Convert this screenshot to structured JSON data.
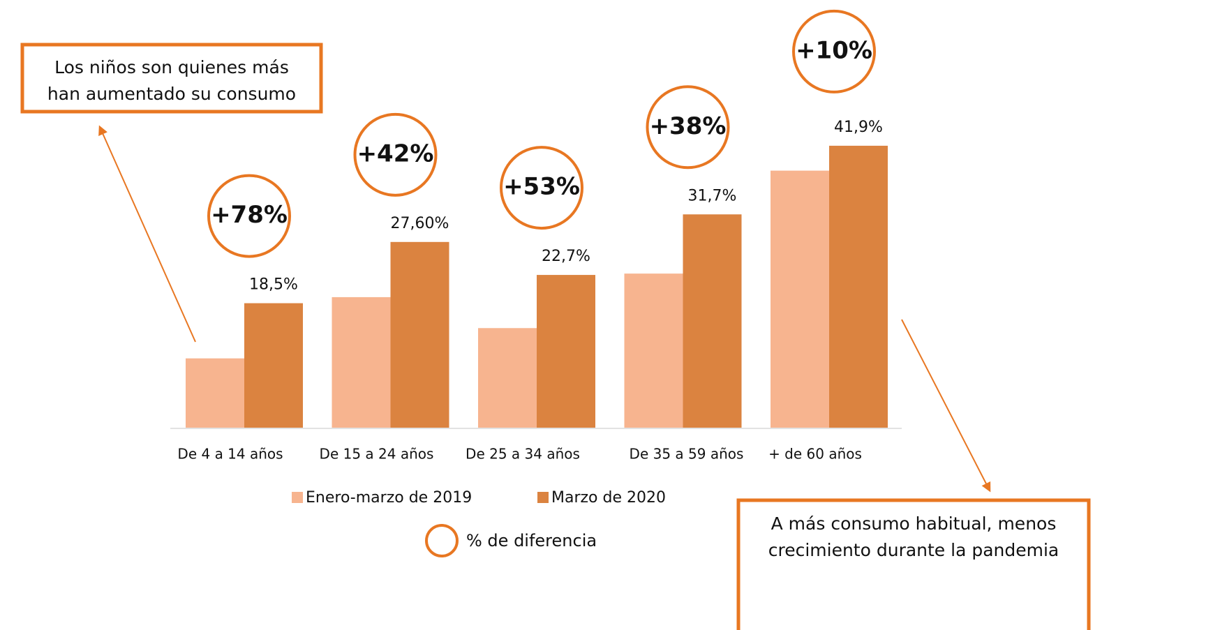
{
  "chart_data": {
    "type": "bar",
    "categories": [
      "De 4 a 14 años",
      "De 15 a 24 años",
      "De 25 a 34 años",
      "De 35 a 59 años",
      "+ de 60 años"
    ],
    "series": [
      {
        "name": "Enero-marzo de 2019",
        "color": "#f7b48f",
        "values": [
          10.3,
          19.4,
          14.8,
          22.9,
          38.2
        ]
      },
      {
        "name": "Marzo de 2020",
        "color": "#db8340",
        "values": [
          18.5,
          27.6,
          22.7,
          31.7,
          41.9
        ],
        "value_labels": [
          "18,5%",
          "27,60%",
          "22,7%",
          "31,7%",
          "41,9%"
        ]
      }
    ],
    "differences": [
      "+78%",
      "+42%",
      "+53%",
      "+38%",
      "+10%"
    ],
    "difference_legend": "% de diferencia",
    "annotations": [
      {
        "lines": [
          "Los niños son quienes más",
          "han aumentado su consumo"
        ]
      },
      {
        "lines": [
          "A más consumo habitual, menos",
          "crecimiento durante la pandemia"
        ]
      }
    ],
    "ylim": [
      0,
      45
    ]
  }
}
